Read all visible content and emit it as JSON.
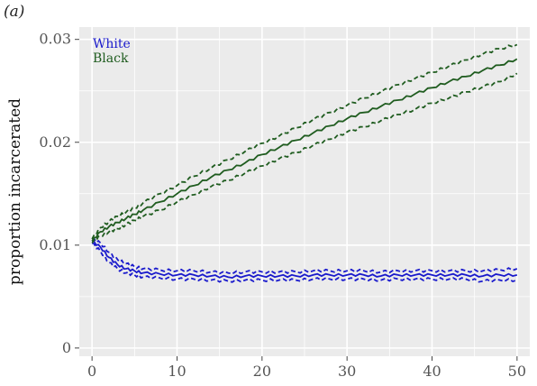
{
  "figure": {
    "panel_label": "(a)"
  },
  "chart_data": {
    "type": "line",
    "title": "",
    "xlabel": "",
    "ylabel": "proportion incarcerated",
    "xlim": [
      -1.5,
      51.5
    ],
    "ylim": [
      -0.0008,
      0.0312
    ],
    "xticks": [
      0,
      10,
      20,
      30,
      40,
      50
    ],
    "xtick_labels": [
      "0",
      "10",
      "20",
      "30",
      "40",
      "50"
    ],
    "yticks": [
      0,
      0.01,
      0.02,
      0.03
    ],
    "ytick_labels": [
      "0",
      "0.01",
      "0.02",
      "0.03"
    ],
    "grid": true,
    "background": "#ebebeb",
    "grid_color": "#ffffff",
    "legend": {
      "placement": "top-left",
      "entries": [
        "White",
        "Black"
      ]
    },
    "series": [
      {
        "name": "White",
        "color": "#1a1acc",
        "x": [
          0,
          1,
          2,
          3,
          4,
          5,
          6,
          8,
          10,
          12,
          14,
          16,
          18,
          20,
          22,
          24,
          26,
          28,
          30,
          32,
          34,
          36,
          38,
          40,
          42,
          44,
          46,
          48,
          50
        ],
        "mean": [
          0.0104,
          0.0098,
          0.0088,
          0.0081,
          0.0077,
          0.0075,
          0.0073,
          0.0072,
          0.0071,
          0.0071,
          0.007,
          0.0069,
          0.007,
          0.007,
          0.007,
          0.007,
          0.0071,
          0.0071,
          0.0071,
          0.0071,
          0.007,
          0.0071,
          0.0071,
          0.0071,
          0.0071,
          0.0071,
          0.007,
          0.0071,
          0.0071
        ],
        "upper": [
          0.0106,
          0.0102,
          0.0093,
          0.0086,
          0.0082,
          0.0079,
          0.0077,
          0.0076,
          0.0075,
          0.0075,
          0.0074,
          0.0073,
          0.0074,
          0.0074,
          0.0074,
          0.0074,
          0.0075,
          0.0075,
          0.0075,
          0.0075,
          0.0074,
          0.0075,
          0.0075,
          0.0075,
          0.0075,
          0.0075,
          0.0075,
          0.0076,
          0.0077
        ],
        "lower": [
          0.0102,
          0.0094,
          0.0083,
          0.0077,
          0.0073,
          0.0071,
          0.0069,
          0.0068,
          0.0067,
          0.0067,
          0.0066,
          0.0065,
          0.0066,
          0.0066,
          0.0066,
          0.0066,
          0.0067,
          0.0067,
          0.0067,
          0.0067,
          0.0066,
          0.0067,
          0.0067,
          0.0067,
          0.0067,
          0.0067,
          0.0065,
          0.0066,
          0.0066
        ]
      },
      {
        "name": "Black",
        "color": "#1f5c1f",
        "x": [
          0,
          1,
          2,
          3,
          4,
          5,
          6,
          8,
          10,
          12,
          14,
          16,
          18,
          20,
          22,
          24,
          26,
          28,
          30,
          32,
          34,
          36,
          38,
          40,
          42,
          44,
          46,
          48,
          50
        ],
        "mean": [
          0.0104,
          0.0113,
          0.0118,
          0.0122,
          0.0126,
          0.013,
          0.0134,
          0.0142,
          0.015,
          0.0158,
          0.0166,
          0.0173,
          0.018,
          0.0188,
          0.0195,
          0.0202,
          0.0209,
          0.0216,
          0.0223,
          0.0229,
          0.0235,
          0.0241,
          0.0247,
          0.0253,
          0.0259,
          0.0264,
          0.027,
          0.0275,
          0.0281
        ],
        "upper": [
          0.0106,
          0.0117,
          0.0123,
          0.0128,
          0.0132,
          0.0136,
          0.0141,
          0.015,
          0.0158,
          0.0167,
          0.0175,
          0.0183,
          0.0191,
          0.0199,
          0.0206,
          0.0214,
          0.0222,
          0.0229,
          0.0236,
          0.0243,
          0.0249,
          0.0256,
          0.0262,
          0.0268,
          0.0274,
          0.028,
          0.0286,
          0.0291,
          0.0295
        ],
        "lower": [
          0.0102,
          0.0109,
          0.0113,
          0.0116,
          0.012,
          0.0124,
          0.0128,
          0.0134,
          0.0142,
          0.0149,
          0.0157,
          0.0163,
          0.017,
          0.0177,
          0.0184,
          0.019,
          0.0197,
          0.0203,
          0.021,
          0.0215,
          0.0221,
          0.0227,
          0.0232,
          0.0238,
          0.0243,
          0.0249,
          0.0254,
          0.0259,
          0.0267
        ]
      }
    ]
  }
}
